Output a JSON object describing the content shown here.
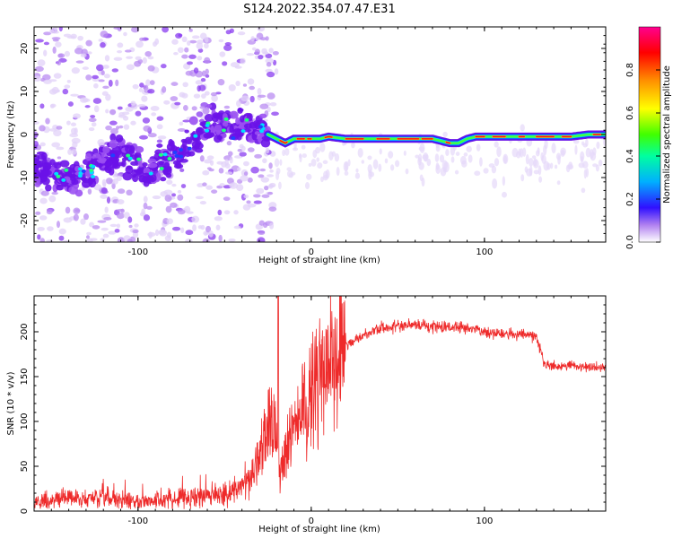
{
  "figure": {
    "title": "S124.2022.354.07.47.E31"
  },
  "colors": {
    "spectrogram_low": "#dcc8f4",
    "spectrogram_mid": "#7a1fe8",
    "snr_line": "#ee2a2a"
  },
  "chart_data": [
    {
      "type": "heatmap",
      "xlabel": "Height of straight line (km)",
      "ylabel": "Frequency (Hz)",
      "xlim": [
        -160,
        170
      ],
      "ylim": [
        -25,
        25
      ],
      "x_ticks": [
        -100,
        0,
        100
      ],
      "y_ticks": [
        -20,
        -10,
        0,
        10,
        20
      ],
      "grid": false,
      "ridge": {
        "x": [
          -160,
          -150,
          -140,
          -130,
          -120,
          -110,
          -100,
          -95,
          -90,
          -85,
          -80,
          -75,
          -70,
          -65,
          -60,
          -55,
          -50,
          -45,
          -40,
          -35,
          -30,
          -25,
          -20,
          -15,
          -10,
          -5,
          0,
          5,
          10,
          20,
          30,
          40,
          50,
          60,
          70,
          75,
          80,
          85,
          90,
          95,
          100,
          110,
          120,
          130,
          140,
          150,
          160,
          165
        ],
        "y": [
          -8,
          -9,
          -10,
          -9,
          -6,
          -4,
          -7,
          -9,
          -8,
          -6,
          -5,
          -4,
          -2,
          0,
          2,
          3,
          2,
          1,
          2,
          3,
          1,
          0,
          -1,
          -2,
          -1,
          -1,
          -1,
          -1,
          -0.5,
          -1,
          -1,
          -1,
          -1,
          -1,
          -1,
          -1.5,
          -2,
          -2,
          -1,
          -0.5,
          -0.5,
          -0.5,
          -0.5,
          -0.5,
          -0.5,
          -0.5,
          0,
          0
        ]
      },
      "colorbar": {
        "label": "Normalized spectral amplitude",
        "range": [
          0,
          1
        ],
        "ticks": [
          "0.0",
          "0.2",
          "0.4",
          "0.6",
          "0.8"
        ],
        "colormap": [
          "#ffffff",
          "#7a1fe8",
          "#0000ff",
          "#00d8ff",
          "#00ff00",
          "#ffff00",
          "#ff8800",
          "#ff0000",
          "#ff0088"
        ]
      }
    },
    {
      "type": "line",
      "xlabel": "Height of straight line (km)",
      "ylabel": "SNR (10 * v/v)",
      "xlim": [
        -160,
        170
      ],
      "ylim": [
        0,
        240
      ],
      "x_ticks": [
        -100,
        0,
        100
      ],
      "y_ticks": [
        0,
        50,
        100,
        150,
        200
      ],
      "grid": false,
      "series": [
        {
          "x": [
            -160,
            -150,
            -140,
            -130,
            -120,
            -110,
            -100,
            -90,
            -80,
            -70,
            -60,
            -50,
            -45,
            -40,
            -35,
            -30,
            -27,
            -25,
            -22,
            -20,
            -18,
            -15,
            -12,
            -10,
            -8,
            -5,
            -2,
            0,
            2,
            5,
            8,
            10,
            15,
            20,
            25,
            30,
            35,
            40,
            50,
            60,
            70,
            80,
            90,
            100,
            110,
            120,
            125,
            128,
            130,
            135,
            140,
            150,
            160,
            170
          ],
          "y": [
            10,
            12,
            15,
            13,
            15,
            12,
            10,
            12,
            14,
            16,
            18,
            20,
            22,
            25,
            35,
            60,
            80,
            100,
            110,
            90,
            30,
            70,
            80,
            90,
            100,
            110,
            120,
            130,
            140,
            150,
            160,
            165,
            175,
            185,
            190,
            195,
            200,
            205,
            205,
            208,
            205,
            205,
            205,
            200,
            198,
            197,
            196,
            195,
            195,
            162,
            162,
            163,
            160,
            160
          ]
        }
      ]
    }
  ]
}
